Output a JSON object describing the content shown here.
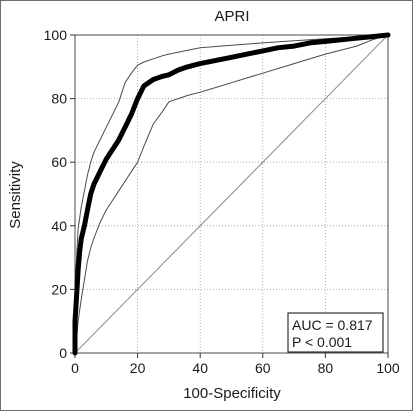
{
  "chart_data": {
    "type": "line",
    "title": "APRI",
    "xlabel": "100-Specificity",
    "ylabel": "Sensitivity",
    "xlim": [
      0,
      100
    ],
    "ylim": [
      0,
      100
    ],
    "xticks": [
      0,
      20,
      40,
      60,
      80,
      100
    ],
    "yticks": [
      0,
      20,
      40,
      60,
      80,
      100
    ],
    "grid": "dotted",
    "annotations": [
      "AUC = 0.817",
      "P < 0.001"
    ],
    "annotation_position": "bottom-right",
    "series": [
      {
        "role": "roc-curve",
        "x": [
          0,
          0,
          0.5,
          1,
          1.5,
          2,
          3,
          4,
          5,
          6,
          7,
          8,
          10,
          12,
          14,
          16,
          18,
          20,
          22,
          25,
          28,
          30,
          33,
          36,
          40,
          45,
          50,
          55,
          60,
          65,
          70,
          75,
          80,
          85,
          90,
          95,
          100
        ],
        "y": [
          0,
          10,
          18,
          26,
          32,
          36,
          40,
          45,
          50,
          53,
          55,
          57,
          61,
          64,
          67,
          71,
          75,
          80,
          84,
          86,
          87,
          87.5,
          89,
          90,
          91,
          92,
          93,
          94,
          95,
          96,
          96.5,
          97.5,
          98,
          98.5,
          99,
          99.5,
          100
        ]
      },
      {
        "role": "upper-confidence-bound",
        "x": [
          0,
          0,
          0.5,
          1,
          2,
          3,
          4,
          5,
          6,
          8,
          10,
          12,
          14,
          16,
          18,
          20,
          22,
          25,
          28,
          30,
          35,
          40,
          50,
          60,
          70,
          80,
          90,
          100
        ],
        "y": [
          0,
          20,
          30,
          39,
          46,
          51,
          56,
          60,
          63,
          67,
          71,
          75,
          79,
          85,
          88,
          90.5,
          91.5,
          92.5,
          93.5,
          94,
          95,
          96,
          96.8,
          97.5,
          98.2,
          98.8,
          99.4,
          100
        ]
      },
      {
        "role": "lower-confidence-bound",
        "x": [
          0,
          0.5,
          1,
          2,
          3,
          4,
          5,
          6,
          8,
          10,
          12,
          14,
          16,
          18,
          20,
          22,
          25,
          28,
          30,
          33,
          36,
          40,
          45,
          50,
          55,
          60,
          70,
          80,
          90,
          95,
          100
        ],
        "y": [
          0,
          4,
          10,
          17,
          23,
          29,
          33,
          36,
          41,
          45,
          48,
          51,
          54,
          57,
          60,
          65,
          72,
          76,
          79,
          80,
          81,
          82,
          83.5,
          85,
          86.5,
          88,
          91,
          94,
          96.5,
          98.5,
          100
        ]
      },
      {
        "role": "reference-diagonal",
        "x": [
          0,
          100
        ],
        "y": [
          0,
          100
        ]
      }
    ]
  }
}
